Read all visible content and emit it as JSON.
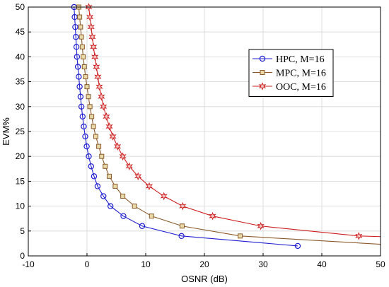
{
  "chart_data": {
    "type": "line",
    "title": "",
    "xlabel": "OSNR (dB)",
    "ylabel": "EVM%",
    "xlim": [
      -10,
      50
    ],
    "ylim": [
      0,
      50
    ],
    "xticks": [
      -10,
      0,
      10,
      20,
      30,
      40,
      50
    ],
    "yticks": [
      0,
      5,
      10,
      15,
      20,
      25,
      30,
      35,
      40,
      45,
      50
    ],
    "grid": true,
    "legend_position": "top-right",
    "series": [
      {
        "name": "HPC, M=16",
        "color": "#1f1fd0",
        "marker": "circle",
        "points": [
          [
            -2.2,
            50
          ],
          [
            -2.1,
            48
          ],
          [
            -2.0,
            46
          ],
          [
            -1.9,
            44
          ],
          [
            -1.8,
            42
          ],
          [
            -1.7,
            40
          ],
          [
            -1.55,
            38
          ],
          [
            -1.4,
            36
          ],
          [
            -1.25,
            34
          ],
          [
            -1.1,
            32
          ],
          [
            -0.95,
            30
          ],
          [
            -0.75,
            28
          ],
          [
            -0.55,
            26
          ],
          [
            -0.3,
            24
          ],
          [
            -0.05,
            22
          ],
          [
            0.3,
            20
          ],
          [
            0.7,
            18
          ],
          [
            1.2,
            16
          ],
          [
            1.8,
            14
          ],
          [
            2.8,
            12
          ],
          [
            4.0,
            10
          ],
          [
            6.2,
            8
          ],
          [
            9.4,
            6
          ],
          [
            16.1,
            4
          ],
          [
            35.9,
            2
          ]
        ]
      },
      {
        "name": "MPC, M=16",
        "color": "#8b5a2b",
        "marker": "square",
        "points": [
          [
            -1.4,
            50
          ],
          [
            -1.25,
            48
          ],
          [
            -1.1,
            46
          ],
          [
            -0.95,
            44
          ],
          [
            -0.8,
            42
          ],
          [
            -0.65,
            40
          ],
          [
            -0.45,
            38
          ],
          [
            -0.25,
            36
          ],
          [
            0.0,
            34
          ],
          [
            0.25,
            32
          ],
          [
            0.5,
            30
          ],
          [
            0.8,
            28
          ],
          [
            1.1,
            26
          ],
          [
            1.5,
            24
          ],
          [
            2.0,
            22
          ],
          [
            2.5,
            20
          ],
          [
            3.1,
            18
          ],
          [
            3.8,
            16
          ],
          [
            4.8,
            14
          ],
          [
            6.1,
            12
          ],
          [
            8.1,
            10
          ],
          [
            11.0,
            8
          ],
          [
            16.2,
            6
          ],
          [
            26.1,
            4
          ],
          [
            52.0,
            2.2
          ]
        ]
      },
      {
        "name": "OOC, M=16",
        "color": "#cc2020",
        "marker": "star",
        "points": [
          [
            0.3,
            50
          ],
          [
            0.5,
            48
          ],
          [
            0.7,
            46
          ],
          [
            0.9,
            44
          ],
          [
            1.1,
            42
          ],
          [
            1.35,
            40
          ],
          [
            1.6,
            38
          ],
          [
            1.85,
            36
          ],
          [
            2.1,
            34
          ],
          [
            2.45,
            32
          ],
          [
            2.8,
            30
          ],
          [
            3.3,
            28
          ],
          [
            3.8,
            26
          ],
          [
            4.4,
            24
          ],
          [
            5.2,
            22
          ],
          [
            6.1,
            20
          ],
          [
            7.2,
            18
          ],
          [
            8.7,
            16
          ],
          [
            10.6,
            14
          ],
          [
            13.1,
            12
          ],
          [
            16.3,
            10
          ],
          [
            21.4,
            8
          ],
          [
            29.6,
            6
          ],
          [
            46.3,
            4
          ],
          [
            52.0,
            3.8
          ]
        ]
      }
    ]
  }
}
